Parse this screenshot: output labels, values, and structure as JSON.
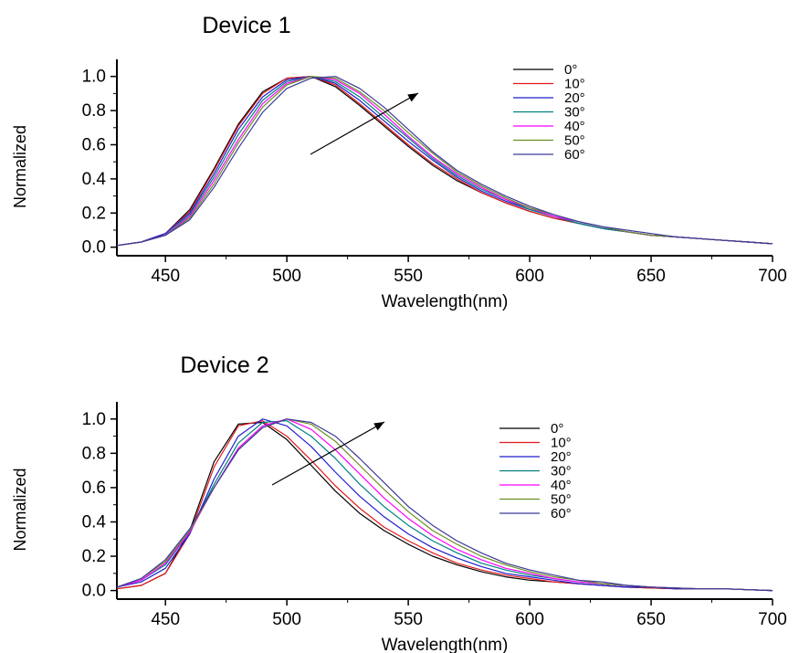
{
  "chart_data": [
    {
      "type": "line",
      "title": "Device 1",
      "xlabel": "Wavelength(nm)",
      "ylabel": "Normalized",
      "xlim": [
        430,
        700
      ],
      "ylim": [
        -0.05,
        1.1
      ],
      "x_ticks": [
        450,
        500,
        550,
        600,
        650,
        700
      ],
      "x_tick_labels": [
        "450",
        "500",
        "550",
        "600",
        "650",
        "700"
      ],
      "y_ticks": [
        0.0,
        0.2,
        0.4,
        0.6,
        0.8,
        1.0
      ],
      "y_tick_labels": [
        "0.0",
        "0.2",
        "0.4",
        "0.6",
        "0.8",
        "1.0"
      ],
      "legend_position": "top-right",
      "annotation": "arrow indicating peak shift with increasing angle",
      "grid": false,
      "series": [
        {
          "name": "0°",
          "color": "#000000",
          "x": [
            430,
            440,
            450,
            460,
            470,
            480,
            490,
            500,
            510,
            520,
            530,
            540,
            550,
            560,
            570,
            580,
            590,
            600,
            610,
            620,
            630,
            640,
            650,
            660,
            670,
            680,
            690,
            700
          ],
          "y": [
            0.01,
            0.03,
            0.08,
            0.22,
            0.46,
            0.72,
            0.91,
            0.99,
            1.0,
            0.94,
            0.83,
            0.71,
            0.59,
            0.48,
            0.39,
            0.32,
            0.26,
            0.21,
            0.17,
            0.14,
            0.11,
            0.09,
            0.07,
            0.06,
            0.05,
            0.04,
            0.03,
            0.02
          ]
        },
        {
          "name": "10°",
          "color": "#e31a1c",
          "x": [
            430,
            440,
            450,
            460,
            470,
            480,
            490,
            500,
            510,
            520,
            530,
            540,
            550,
            560,
            570,
            580,
            590,
            600,
            610,
            620,
            630,
            640,
            650,
            660,
            670,
            680,
            690,
            700
          ],
          "y": [
            0.01,
            0.03,
            0.08,
            0.21,
            0.45,
            0.71,
            0.9,
            0.99,
            1.0,
            0.95,
            0.84,
            0.72,
            0.6,
            0.49,
            0.4,
            0.32,
            0.26,
            0.21,
            0.17,
            0.14,
            0.11,
            0.09,
            0.07,
            0.06,
            0.05,
            0.04,
            0.03,
            0.02
          ]
        },
        {
          "name": "20°",
          "color": "#1f1fcf",
          "x": [
            430,
            440,
            450,
            460,
            470,
            480,
            490,
            500,
            510,
            520,
            530,
            540,
            550,
            560,
            570,
            580,
            590,
            600,
            610,
            620,
            630,
            640,
            650,
            660,
            670,
            680,
            690,
            700
          ],
          "y": [
            0.01,
            0.03,
            0.08,
            0.2,
            0.43,
            0.69,
            0.88,
            0.98,
            1.0,
            0.96,
            0.86,
            0.74,
            0.62,
            0.51,
            0.41,
            0.33,
            0.27,
            0.22,
            0.18,
            0.14,
            0.11,
            0.09,
            0.07,
            0.06,
            0.05,
            0.04,
            0.03,
            0.02
          ]
        },
        {
          "name": "30°",
          "color": "#008080",
          "x": [
            430,
            440,
            450,
            460,
            470,
            480,
            490,
            500,
            510,
            520,
            530,
            540,
            550,
            560,
            570,
            580,
            590,
            600,
            610,
            620,
            630,
            640,
            650,
            660,
            670,
            680,
            690,
            700
          ],
          "y": [
            0.01,
            0.03,
            0.07,
            0.19,
            0.41,
            0.66,
            0.86,
            0.97,
            1.0,
            0.97,
            0.88,
            0.76,
            0.64,
            0.52,
            0.42,
            0.34,
            0.28,
            0.22,
            0.18,
            0.14,
            0.11,
            0.09,
            0.07,
            0.06,
            0.05,
            0.04,
            0.03,
            0.02
          ]
        },
        {
          "name": "40°",
          "color": "#ff00ff",
          "x": [
            430,
            440,
            450,
            460,
            470,
            480,
            490,
            500,
            510,
            520,
            530,
            540,
            550,
            560,
            570,
            580,
            590,
            600,
            610,
            620,
            630,
            640,
            650,
            660,
            670,
            680,
            690,
            700
          ],
          "y": [
            0.01,
            0.03,
            0.07,
            0.18,
            0.39,
            0.63,
            0.84,
            0.96,
            1.0,
            0.98,
            0.9,
            0.78,
            0.65,
            0.53,
            0.43,
            0.35,
            0.28,
            0.23,
            0.18,
            0.15,
            0.12,
            0.09,
            0.07,
            0.06,
            0.05,
            0.04,
            0.03,
            0.02
          ]
        },
        {
          "name": "50°",
          "color": "#6b8e23",
          "x": [
            430,
            440,
            450,
            460,
            470,
            480,
            490,
            500,
            510,
            520,
            530,
            540,
            550,
            560,
            570,
            580,
            590,
            600,
            610,
            620,
            630,
            640,
            650,
            660,
            670,
            680,
            690,
            700
          ],
          "y": [
            0.01,
            0.03,
            0.07,
            0.17,
            0.37,
            0.61,
            0.82,
            0.95,
            1.0,
            0.99,
            0.91,
            0.8,
            0.67,
            0.55,
            0.44,
            0.36,
            0.29,
            0.23,
            0.19,
            0.15,
            0.12,
            0.09,
            0.07,
            0.06,
            0.05,
            0.04,
            0.03,
            0.02
          ]
        },
        {
          "name": "60°",
          "color": "#3a3a9a",
          "x": [
            430,
            440,
            450,
            460,
            470,
            480,
            490,
            500,
            510,
            520,
            530,
            540,
            550,
            560,
            570,
            580,
            590,
            600,
            610,
            620,
            630,
            640,
            650,
            660,
            670,
            680,
            690,
            700
          ],
          "y": [
            0.01,
            0.03,
            0.07,
            0.16,
            0.35,
            0.58,
            0.79,
            0.93,
            0.99,
            1.0,
            0.93,
            0.82,
            0.69,
            0.56,
            0.45,
            0.37,
            0.3,
            0.24,
            0.19,
            0.15,
            0.12,
            0.1,
            0.08,
            0.06,
            0.05,
            0.04,
            0.03,
            0.02
          ]
        }
      ]
    },
    {
      "type": "line",
      "title": "Device 2",
      "xlabel": "Wavelength(nm)",
      "ylabel": "Normalized",
      "xlim": [
        430,
        700
      ],
      "ylim": [
        -0.05,
        1.1
      ],
      "x_ticks": [
        450,
        500,
        550,
        600,
        650,
        700
      ],
      "x_tick_labels": [
        "450",
        "500",
        "550",
        "600",
        "650",
        "700"
      ],
      "y_ticks": [
        0.0,
        0.2,
        0.4,
        0.6,
        0.8,
        1.0
      ],
      "y_tick_labels": [
        "0.0",
        "0.2",
        "0.4",
        "0.6",
        "0.8",
        "1.0"
      ],
      "legend_position": "top-right",
      "annotation": "arrow indicating peak shift with increasing angle",
      "grid": false,
      "series": [
        {
          "name": "0°",
          "color": "#000000",
          "x": [
            430,
            440,
            450,
            460,
            470,
            480,
            490,
            500,
            510,
            520,
            530,
            540,
            550,
            560,
            570,
            580,
            590,
            600,
            610,
            620,
            630,
            640,
            650,
            660,
            670,
            680,
            690,
            700
          ],
          "y": [
            0.01,
            0.03,
            0.1,
            0.35,
            0.75,
            0.97,
            0.98,
            0.88,
            0.73,
            0.58,
            0.45,
            0.35,
            0.27,
            0.2,
            0.15,
            0.11,
            0.08,
            0.06,
            0.05,
            0.04,
            0.03,
            0.02,
            0.015,
            0.01,
            0.01,
            0.01,
            0.005,
            0.0
          ]
        },
        {
          "name": "10°",
          "color": "#e31a1c",
          "x": [
            430,
            440,
            450,
            460,
            470,
            480,
            490,
            500,
            510,
            520,
            530,
            540,
            550,
            560,
            570,
            580,
            590,
            600,
            610,
            620,
            630,
            640,
            650,
            660,
            670,
            680,
            690,
            700
          ],
          "y": [
            0.01,
            0.03,
            0.1,
            0.33,
            0.72,
            0.96,
            0.99,
            0.9,
            0.76,
            0.61,
            0.48,
            0.37,
            0.29,
            0.22,
            0.16,
            0.12,
            0.09,
            0.07,
            0.05,
            0.04,
            0.03,
            0.02,
            0.015,
            0.01,
            0.01,
            0.01,
            0.005,
            0.0
          ]
        },
        {
          "name": "20°",
          "color": "#1f1fcf",
          "x": [
            430,
            440,
            450,
            460,
            470,
            480,
            490,
            500,
            510,
            520,
            530,
            540,
            550,
            560,
            570,
            580,
            590,
            600,
            610,
            620,
            630,
            640,
            650,
            660,
            670,
            680,
            690,
            700
          ],
          "y": [
            0.02,
            0.05,
            0.13,
            0.33,
            0.65,
            0.9,
            1.0,
            0.96,
            0.84,
            0.69,
            0.55,
            0.43,
            0.33,
            0.25,
            0.19,
            0.14,
            0.1,
            0.08,
            0.06,
            0.04,
            0.03,
            0.02,
            0.02,
            0.01,
            0.01,
            0.01,
            0.005,
            0.0
          ]
        },
        {
          "name": "30°",
          "color": "#008080",
          "x": [
            430,
            440,
            450,
            460,
            470,
            480,
            490,
            500,
            510,
            520,
            530,
            540,
            550,
            560,
            570,
            580,
            590,
            600,
            610,
            620,
            630,
            640,
            650,
            660,
            670,
            680,
            690,
            700
          ],
          "y": [
            0.02,
            0.06,
            0.15,
            0.34,
            0.62,
            0.86,
            0.98,
            0.99,
            0.9,
            0.77,
            0.62,
            0.49,
            0.38,
            0.29,
            0.22,
            0.16,
            0.12,
            0.09,
            0.07,
            0.05,
            0.04,
            0.03,
            0.02,
            0.015,
            0.01,
            0.01,
            0.005,
            0.0
          ]
        },
        {
          "name": "40°",
          "color": "#ff00ff",
          "x": [
            430,
            440,
            450,
            460,
            470,
            480,
            490,
            500,
            510,
            520,
            530,
            540,
            550,
            560,
            570,
            580,
            590,
            600,
            610,
            620,
            630,
            640,
            650,
            660,
            670,
            680,
            690,
            700
          ],
          "y": [
            0.02,
            0.06,
            0.16,
            0.34,
            0.6,
            0.83,
            0.96,
            1.0,
            0.94,
            0.82,
            0.68,
            0.54,
            0.42,
            0.32,
            0.24,
            0.18,
            0.13,
            0.1,
            0.07,
            0.05,
            0.04,
            0.03,
            0.02,
            0.015,
            0.01,
            0.01,
            0.005,
            0.0
          ]
        },
        {
          "name": "50°",
          "color": "#6b8e23",
          "x": [
            430,
            440,
            450,
            460,
            470,
            480,
            490,
            500,
            510,
            520,
            530,
            540,
            550,
            560,
            570,
            580,
            590,
            600,
            610,
            620,
            630,
            640,
            650,
            660,
            670,
            680,
            690,
            700
          ],
          "y": [
            0.02,
            0.07,
            0.17,
            0.35,
            0.6,
            0.82,
            0.95,
            1.0,
            0.97,
            0.87,
            0.73,
            0.59,
            0.46,
            0.35,
            0.27,
            0.2,
            0.15,
            0.11,
            0.08,
            0.06,
            0.04,
            0.03,
            0.02,
            0.015,
            0.01,
            0.01,
            0.005,
            0.0
          ]
        },
        {
          "name": "60°",
          "color": "#3a3a9a",
          "x": [
            430,
            440,
            450,
            460,
            470,
            480,
            490,
            500,
            510,
            520,
            530,
            540,
            550,
            560,
            570,
            580,
            590,
            600,
            610,
            620,
            630,
            640,
            650,
            660,
            670,
            680,
            690,
            700
          ],
          "y": [
            0.02,
            0.07,
            0.18,
            0.36,
            0.6,
            0.82,
            0.95,
            1.0,
            0.98,
            0.9,
            0.77,
            0.63,
            0.49,
            0.38,
            0.29,
            0.22,
            0.16,
            0.12,
            0.09,
            0.06,
            0.05,
            0.03,
            0.02,
            0.015,
            0.01,
            0.01,
            0.005,
            0.0
          ]
        }
      ]
    }
  ]
}
